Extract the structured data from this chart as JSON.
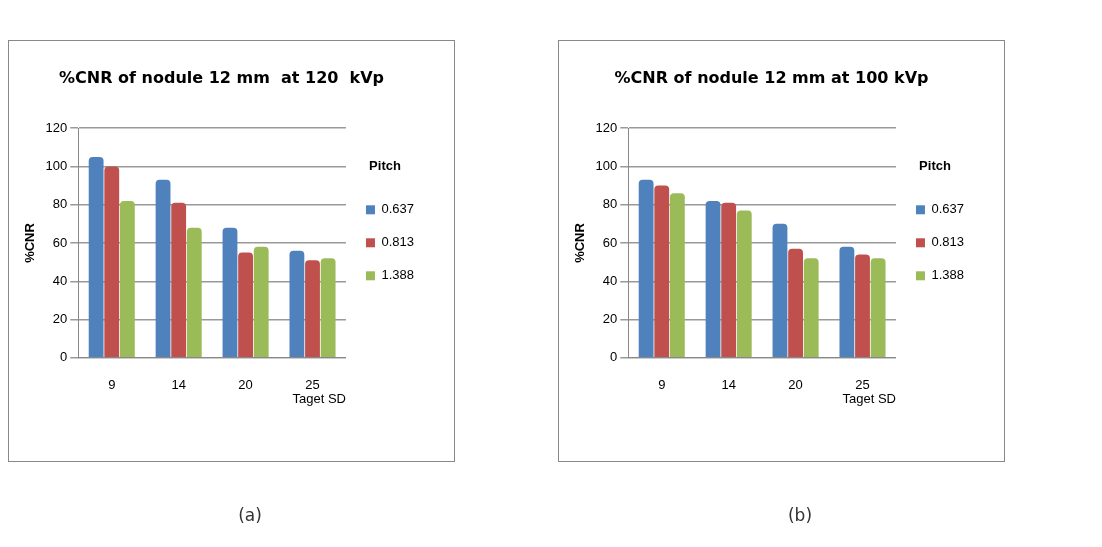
{
  "chart_data": [
    {
      "type": "bar",
      "title": "%CNR of nodule 12 mm  at 120  kVp",
      "xlabel": "Taget SD",
      "ylabel": "%CNR",
      "legend_title": "Pitch",
      "categories": [
        "9",
        "14",
        "20",
        "25"
      ],
      "series": [
        {
          "name": "0.637",
          "color": "#4f81bd",
          "values": [
            105,
            93,
            68,
            56
          ]
        },
        {
          "name": "0.813",
          "color": "#c0504d",
          "values": [
            100,
            81,
            55,
            51
          ]
        },
        {
          "name": "1.388",
          "color": "#9bbb59",
          "values": [
            82,
            68,
            58,
            52
          ]
        }
      ],
      "ylim": [
        0,
        120
      ],
      "yticks": [
        0,
        20,
        40,
        60,
        80,
        100,
        120
      ],
      "grid": "y",
      "legend": "right",
      "annotations": [
        "(a)"
      ]
    },
    {
      "type": "bar",
      "title": "%CNR of nodule 12 mm at 100 kVp",
      "xlabel": "Taget SD",
      "ylabel": "%CNR",
      "legend_title": "Pitch",
      "categories": [
        "9",
        "14",
        "20",
        "25"
      ],
      "series": [
        {
          "name": "0.637",
          "color": "#4f81bd",
          "values": [
            93,
            82,
            70,
            58
          ]
        },
        {
          "name": "0.813",
          "color": "#c0504d",
          "values": [
            90,
            81,
            57,
            54
          ]
        },
        {
          "name": "1.388",
          "color": "#9bbb59",
          "values": [
            86,
            77,
            52,
            52
          ]
        }
      ],
      "ylim": [
        0,
        120
      ],
      "yticks": [
        0,
        20,
        40,
        60,
        80,
        100,
        120
      ],
      "grid": "y",
      "legend": "right",
      "annotations": [
        "(b)"
      ]
    }
  ]
}
